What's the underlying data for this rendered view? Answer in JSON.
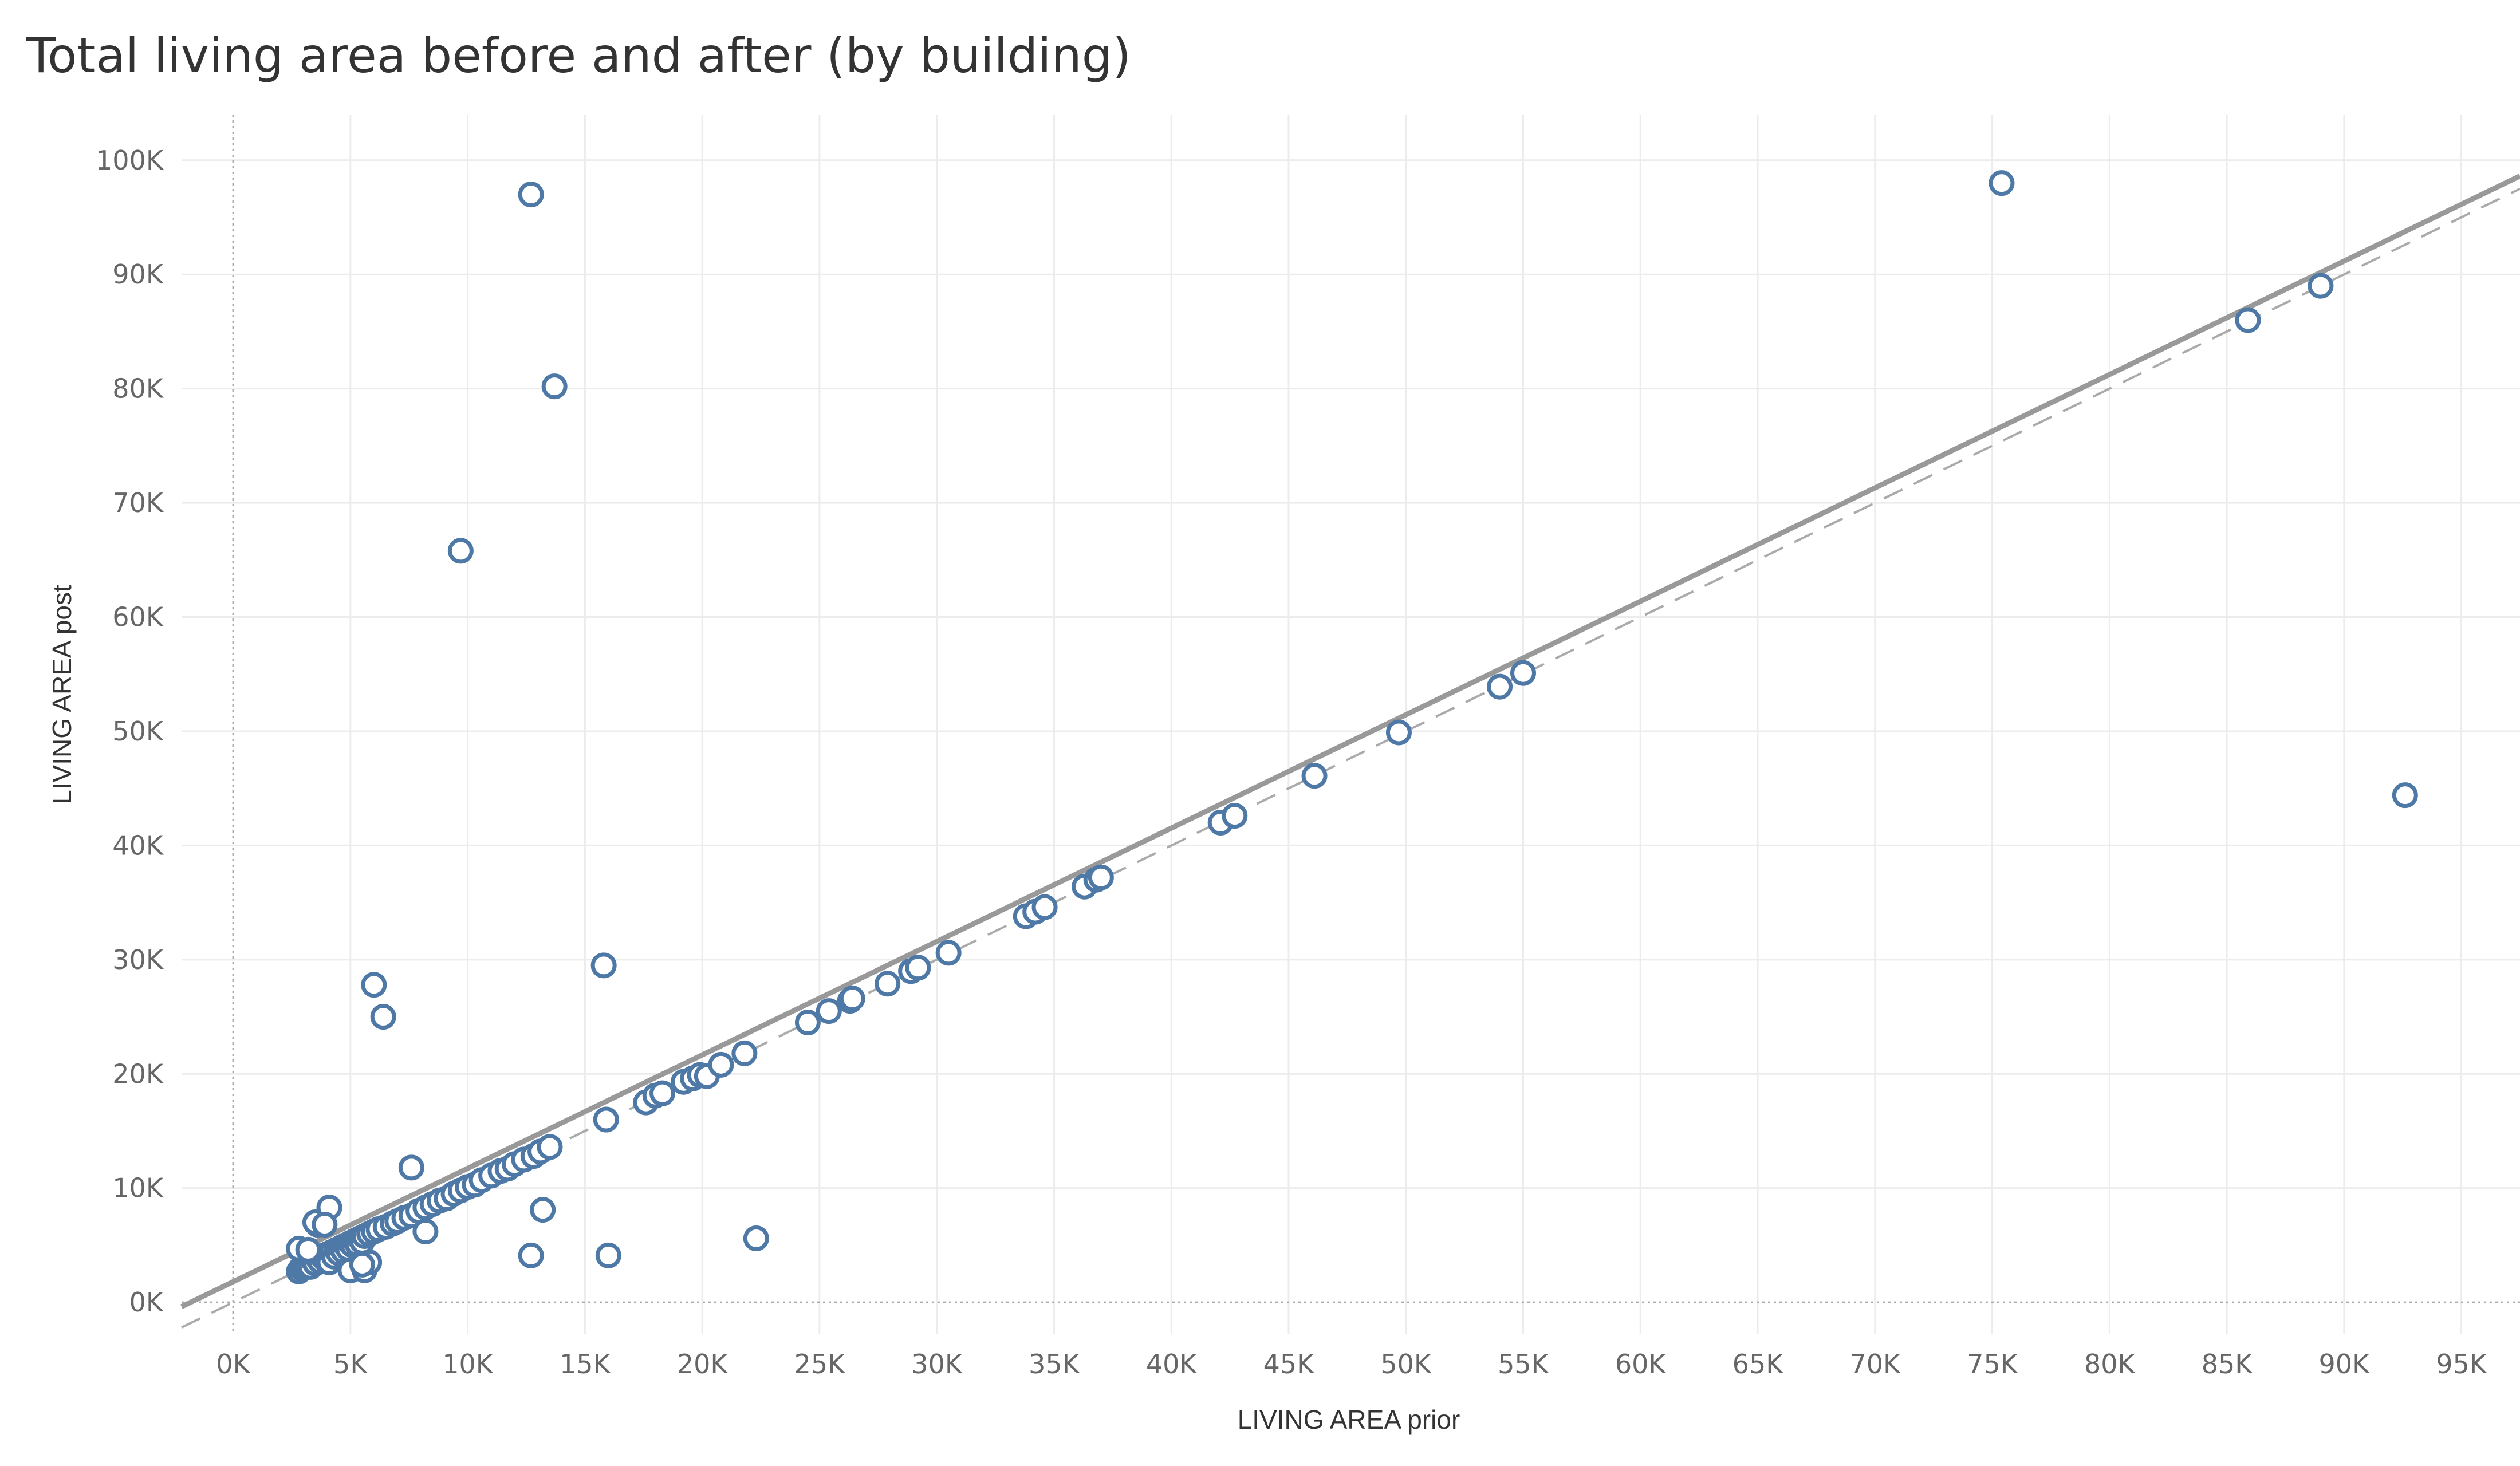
{
  "chart_data": {
    "type": "scatter",
    "title": "Total living area before and after (by building)",
    "xlabel": "LIVING AREA prior",
    "ylabel": "LIVING AREA post",
    "xlim": [
      -2200,
      97500
    ],
    "ylim": [
      -2800,
      104000
    ],
    "x_ticks": [
      0,
      5000,
      10000,
      15000,
      20000,
      25000,
      30000,
      35000,
      40000,
      45000,
      50000,
      55000,
      60000,
      65000,
      70000,
      75000,
      80000,
      85000,
      90000,
      95000
    ],
    "x_tick_labels": [
      "0K",
      "5K",
      "10K",
      "15K",
      "20K",
      "25K",
      "30K",
      "35K",
      "40K",
      "45K",
      "50K",
      "55K",
      "60K",
      "65K",
      "70K",
      "75K",
      "80K",
      "85K",
      "90K",
      "95K"
    ],
    "y_ticks": [
      0,
      10000,
      20000,
      30000,
      40000,
      50000,
      60000,
      70000,
      80000,
      90000,
      100000
    ],
    "y_tick_labels": [
      "0K",
      "10K",
      "20K",
      "30K",
      "40K",
      "50K",
      "60K",
      "70K",
      "80K",
      "90K",
      "100K"
    ],
    "grid": true,
    "marker_color": "#4e79a7",
    "reference_line": {
      "description": "dashed y = x",
      "color": "#aaaaaa"
    },
    "trend_line": {
      "intercept": 1800,
      "slope": 0.993,
      "color": "#999999"
    },
    "points": [
      [
        2800,
        2700
      ],
      [
        2900,
        3000
      ],
      [
        3000,
        3200
      ],
      [
        3100,
        3300
      ],
      [
        3200,
        3500
      ],
      [
        3300,
        3100
      ],
      [
        3400,
        3700
      ],
      [
        3500,
        3400
      ],
      [
        3600,
        3900
      ],
      [
        3700,
        3600
      ],
      [
        3800,
        4000
      ],
      [
        3900,
        3800
      ],
      [
        4000,
        4200
      ],
      [
        4100,
        3500
      ],
      [
        4200,
        4400
      ],
      [
        4300,
        4000
      ],
      [
        4400,
        4600
      ],
      [
        4500,
        4300
      ],
      [
        4600,
        4800
      ],
      [
        4700,
        4500
      ],
      [
        4800,
        5000
      ],
      [
        4900,
        4700
      ],
      [
        5000,
        5200
      ],
      [
        5100,
        5000
      ],
      [
        5200,
        5400
      ],
      [
        5300,
        5100
      ],
      [
        5400,
        5600
      ],
      [
        5500,
        5300
      ],
      [
        5600,
        5800
      ],
      [
        5800,
        6000
      ],
      [
        6000,
        6200
      ],
      [
        6200,
        6400
      ],
      [
        6500,
        6600
      ],
      [
        6800,
        6900
      ],
      [
        7000,
        7100
      ],
      [
        7300,
        7400
      ],
      [
        7600,
        7600
      ],
      [
        7900,
        8000
      ],
      [
        8200,
        8300
      ],
      [
        8500,
        8600
      ],
      [
        8800,
        8900
      ],
      [
        9100,
        9100
      ],
      [
        9400,
        9500
      ],
      [
        9700,
        9800
      ],
      [
        10000,
        10100
      ],
      [
        10300,
        10300
      ],
      [
        10600,
        10700
      ],
      [
        11000,
        11100
      ],
      [
        11400,
        11500
      ],
      [
        11700,
        11700
      ],
      [
        12000,
        12100
      ],
      [
        12400,
        12500
      ],
      [
        12800,
        12800
      ],
      [
        13100,
        13200
      ],
      [
        13500,
        13600
      ],
      [
        2800,
        4700
      ],
      [
        3600,
        6800
      ],
      [
        3500,
        7000
      ],
      [
        3200,
        4600
      ],
      [
        4100,
        8300
      ],
      [
        3900,
        6800
      ],
      [
        5000,
        2800
      ],
      [
        5600,
        2800
      ],
      [
        5800,
        3500
      ],
      [
        5500,
        3300
      ],
      [
        6000,
        27800
      ],
      [
        6400,
        25000
      ],
      [
        7600,
        11800
      ],
      [
        8200,
        6200
      ],
      [
        9700,
        65800
      ],
      [
        12700,
        97000
      ],
      [
        13700,
        80200
      ],
      [
        13200,
        8100
      ],
      [
        12700,
        4100
      ],
      [
        16000,
        4100
      ],
      [
        15800,
        29500
      ],
      [
        15900,
        16000
      ],
      [
        22300,
        5600
      ],
      [
        17600,
        17500
      ],
      [
        18000,
        18100
      ],
      [
        18300,
        18300
      ],
      [
        19200,
        19300
      ],
      [
        19600,
        19600
      ],
      [
        19900,
        19900
      ],
      [
        20200,
        19800
      ],
      [
        20800,
        20800
      ],
      [
        21800,
        21800
      ],
      [
        24500,
        24500
      ],
      [
        25400,
        25500
      ],
      [
        26300,
        26400
      ],
      [
        26400,
        26600
      ],
      [
        27900,
        27900
      ],
      [
        28900,
        29000
      ],
      [
        29200,
        29300
      ],
      [
        30500,
        30600
      ],
      [
        33800,
        33800
      ],
      [
        34200,
        34200
      ],
      [
        34600,
        34600
      ],
      [
        36300,
        36400
      ],
      [
        36800,
        37000
      ],
      [
        37000,
        37200
      ],
      [
        42100,
        42000
      ],
      [
        42700,
        42600
      ],
      [
        46100,
        46100
      ],
      [
        49700,
        49900
      ],
      [
        54000,
        53900
      ],
      [
        55000,
        55100
      ],
      [
        75400,
        98000
      ],
      [
        85900,
        86000
      ],
      [
        89000,
        89000
      ],
      [
        92600,
        44400
      ]
    ]
  }
}
